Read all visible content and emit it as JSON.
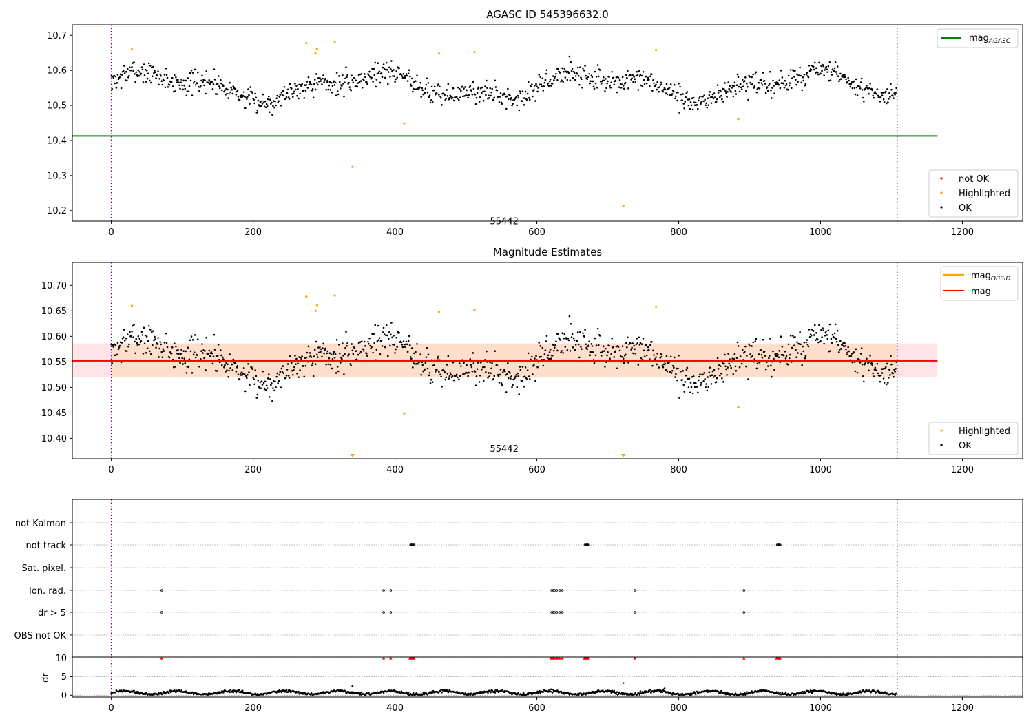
{
  "figure": {
    "background": "#ffffff"
  },
  "colors": {
    "ok": "#000000",
    "highlighted": "#ffa500",
    "not_ok": "#ff0000",
    "agasc_line": "#008000",
    "mag_line": "#ff0000",
    "band": "#ffc0cb",
    "band_inner": "#ffdab9",
    "obs_boundary": "#800080",
    "grid": "#b0b0b0"
  },
  "chart_data": [
    {
      "id": "top",
      "type": "scatter",
      "title": "AGASC ID 545396632.0",
      "xlim": [
        -55,
        1285
      ],
      "ylim": [
        10.17,
        10.73
      ],
      "xticks": [
        0,
        200,
        400,
        600,
        800,
        1000,
        1200
      ],
      "yticks": [
        10.2,
        10.3,
        10.4,
        10.5,
        10.6,
        10.7
      ],
      "ytick_labels": [
        "10.2",
        "10.3",
        "10.4",
        "10.5",
        "10.6",
        "10.7"
      ],
      "obs_boundaries": [
        0,
        1108
      ],
      "obsid_label": {
        "text": "55442",
        "x": 554,
        "y": 10.195
      },
      "reference_line": {
        "label": "mag_AGASC",
        "label_main": "mag",
        "label_sub": "AGASC",
        "y": 10.413,
        "x": [
          -55,
          1165
        ],
        "color": "#008000"
      },
      "noise": {
        "n": 1108,
        "base": 10.555,
        "seed": 7
      },
      "highlighted_points": [
        [
          29,
          10.66
        ],
        [
          275,
          10.678
        ],
        [
          288,
          10.648
        ],
        [
          290,
          10.661
        ],
        [
          315,
          10.68
        ],
        [
          340,
          10.325
        ],
        [
          413,
          10.449
        ],
        [
          462,
          10.648
        ],
        [
          512,
          10.652
        ],
        [
          722,
          10.213
        ],
        [
          768,
          10.658
        ],
        [
          884,
          10.461
        ]
      ],
      "legend_upper": [
        "mag_AGASC"
      ],
      "legend_lower": [
        "not OK",
        "Highlighted",
        "OK"
      ]
    },
    {
      "id": "middle",
      "type": "scatter",
      "title": "Magnitude Estimates",
      "xlim": [
        -55,
        1285
      ],
      "ylim": [
        10.36,
        10.745
      ],
      "xticks": [
        0,
        200,
        400,
        600,
        800,
        1000,
        1200
      ],
      "yticks": [
        10.4,
        10.45,
        10.5,
        10.55,
        10.6,
        10.65,
        10.7
      ],
      "ytick_labels": [
        "10.40",
        "10.45",
        "10.50",
        "10.55",
        "10.60",
        "10.65",
        "10.70"
      ],
      "obs_boundaries": [
        0,
        1108
      ],
      "obsid_label": {
        "text": "55442",
        "x": 554,
        "y": 10.375
      },
      "mag_line": {
        "label": "mag",
        "y": 10.552,
        "x": [
          -55,
          1165
        ],
        "color": "#ff0000"
      },
      "mag_obsid": {
        "label_main": "mag",
        "label_sub": "OBSID",
        "y": 10.552,
        "x": [
          0,
          1108
        ],
        "color": "#ffa500"
      },
      "band": {
        "y": [
          10.52,
          10.586
        ],
        "x": [
          -55,
          1165
        ]
      },
      "band_inner": {
        "y": [
          10.52,
          10.586
        ],
        "x": [
          0,
          1108
        ]
      },
      "noise": {
        "n": 1108,
        "base": 10.555,
        "seed": 7
      },
      "highlighted_points": [
        [
          29,
          10.66
        ],
        [
          275,
          10.678
        ],
        [
          288,
          10.65
        ],
        [
          290,
          10.661
        ],
        [
          315,
          10.68
        ],
        [
          413,
          10.449
        ],
        [
          462,
          10.648
        ],
        [
          512,
          10.652
        ],
        [
          768,
          10.658
        ],
        [
          884,
          10.461
        ]
      ],
      "offscale_markers": [
        340,
        722
      ],
      "legend_upper": [
        "mag_OBSID",
        "mag"
      ],
      "legend_lower": [
        "Highlighted",
        "OK"
      ]
    },
    {
      "id": "flags",
      "type": "scatter",
      "xlim": [
        -55,
        1285
      ],
      "xticks": [
        0,
        200,
        400,
        600,
        800,
        1000,
        1200
      ],
      "obs_boundaries": [
        0,
        1108
      ],
      "rows": [
        {
          "label": "not Kalman",
          "x": []
        },
        {
          "label": "not track",
          "x": [
            422,
            423,
            424,
            425,
            426,
            427,
            668,
            669,
            670,
            671,
            672,
            673,
            939,
            940,
            941,
            942,
            943
          ]
        },
        {
          "label": "Sat. pixel.",
          "x": []
        },
        {
          "label": "Ion. rad.",
          "x": [
            71,
            384,
            394,
            621,
            623,
            625,
            628,
            632,
            636,
            738,
            892
          ]
        },
        {
          "label": "dr > 5",
          "x": [
            71,
            384,
            394,
            621,
            623,
            625,
            628,
            632,
            636,
            738,
            892
          ]
        },
        {
          "label": "OBS not OK",
          "x": []
        }
      ]
    },
    {
      "id": "dr",
      "type": "scatter",
      "ylabel": "dr",
      "xlim": [
        -55,
        1285
      ],
      "ylim": [
        -0.5,
        10.3
      ],
      "xticks": [
        0,
        200,
        400,
        600,
        800,
        1000,
        1200
      ],
      "yticks": [
        0,
        5,
        10
      ],
      "ytick_labels": [
        "0",
        "5",
        "10"
      ],
      "obs_boundaries": [
        0,
        1108
      ],
      "capped_points": [
        71,
        384,
        394,
        421,
        422,
        423,
        424,
        425,
        426,
        427,
        620,
        621,
        622,
        623,
        625,
        628,
        629,
        632,
        636,
        667,
        668,
        669,
        670,
        671,
        672,
        673,
        738,
        892,
        938,
        939,
        940,
        941,
        942,
        943
      ],
      "outliers": [
        [
          722,
          3.3
        ],
        [
          340,
          2.4
        ],
        [
          780,
          1.8
        ]
      ]
    }
  ]
}
